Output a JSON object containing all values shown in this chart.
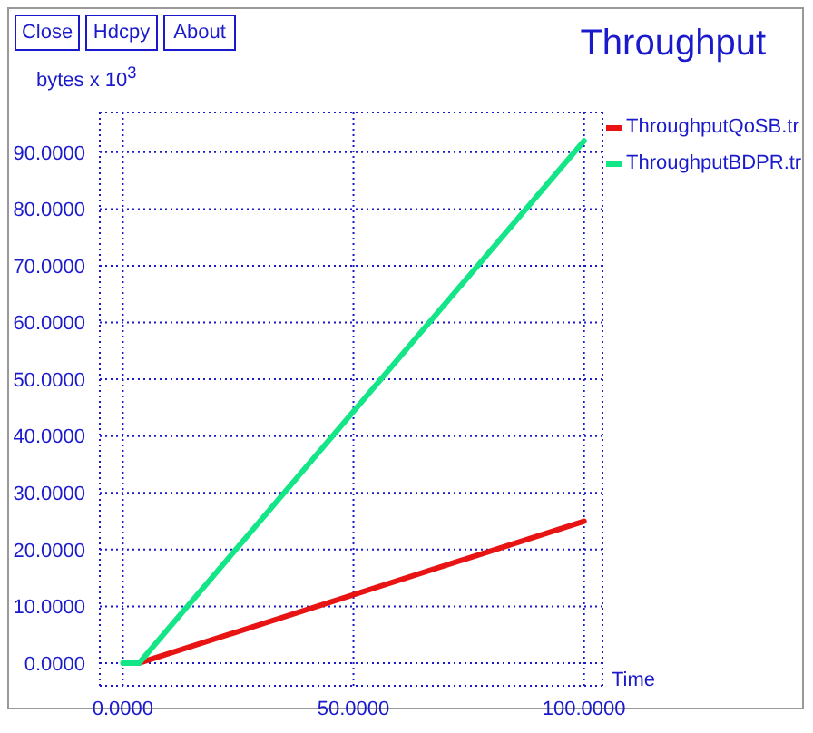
{
  "chart_data": {
    "type": "line",
    "title": "Throughput",
    "xlabel": "Time",
    "ylabel": "bytes x 10$^{3}$",
    "series": [
      {
        "name": "ThroughputQoSB.tr",
        "color": "#e81414",
        "x": [
          3.5,
          100
        ],
        "values": [
          0,
          25
        ]
      },
      {
        "name": "ThroughputBDPR.tr",
        "color": "#14e688",
        "x": [
          0,
          3.5,
          100
        ],
        "values": [
          0,
          0,
          92
        ]
      }
    ],
    "xlim": [
      -5,
      104
    ],
    "ylim": [
      -4,
      97
    ],
    "xticks": [
      {
        "value": 0,
        "label": "0.0000"
      },
      {
        "value": 50,
        "label": "50.0000"
      },
      {
        "value": 100,
        "label": "100.0000"
      }
    ],
    "yticks": [
      {
        "value": 0,
        "label": "0.0000"
      },
      {
        "value": 10,
        "label": "10.0000"
      },
      {
        "value": 20,
        "label": "20.0000"
      },
      {
        "value": 30,
        "label": "30.0000"
      },
      {
        "value": 40,
        "label": "40.0000"
      },
      {
        "value": 50,
        "label": "50.0000"
      },
      {
        "value": 60,
        "label": "60.0000"
      },
      {
        "value": 70,
        "label": "70.0000"
      },
      {
        "value": 80,
        "label": "80.0000"
      },
      {
        "value": 90,
        "label": "90.0000"
      }
    ],
    "grid": true,
    "legend": "top right",
    "annotations": [
      "Close",
      "Hdcpy",
      "About"
    ]
  }
}
